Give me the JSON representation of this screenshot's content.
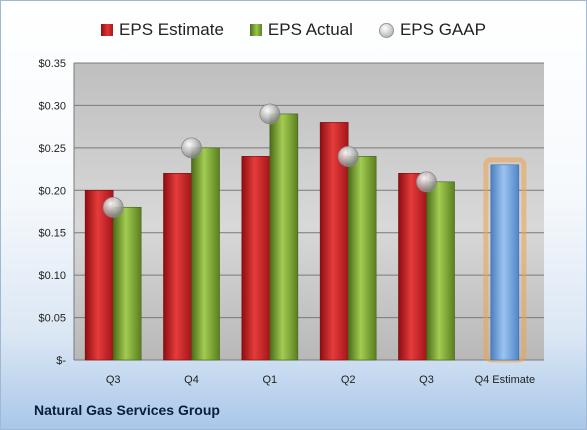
{
  "legend": {
    "estimate": "EPS Estimate",
    "actual": "EPS Actual",
    "gaap": "EPS GAAP"
  },
  "footer": {
    "company": "Natural Gas Services Group"
  },
  "colors": {
    "estimate": "#c0262b",
    "actual": "#7ea43a",
    "gaap": "#b5b5b5",
    "forecast": "#6b9fd8",
    "forecast_glow": "#f0a24a"
  },
  "chart_data": {
    "type": "bar",
    "categories": [
      "Q3",
      "Q4",
      "Q1",
      "Q2",
      "Q3",
      "Q4 Estimate"
    ],
    "series": [
      {
        "name": "EPS Estimate",
        "values": [
          0.2,
          0.22,
          0.24,
          0.28,
          0.22,
          0.23
        ]
      },
      {
        "name": "EPS Actual",
        "values": [
          0.18,
          0.25,
          0.29,
          0.24,
          0.21,
          null
        ]
      },
      {
        "name": "EPS GAAP",
        "values": [
          0.18,
          0.25,
          0.29,
          0.24,
          0.21,
          null
        ]
      }
    ],
    "ylim": [
      0,
      0.35
    ],
    "yticks": [
      0,
      0.05,
      0.1,
      0.15,
      0.2,
      0.25,
      0.3,
      0.35
    ],
    "ytick_labels": [
      "$-",
      "$0.05",
      "$0.10",
      "$0.15",
      "$0.20",
      "$0.25",
      "$0.30",
      "$0.35"
    ],
    "grid": true,
    "legend_position": "top"
  }
}
